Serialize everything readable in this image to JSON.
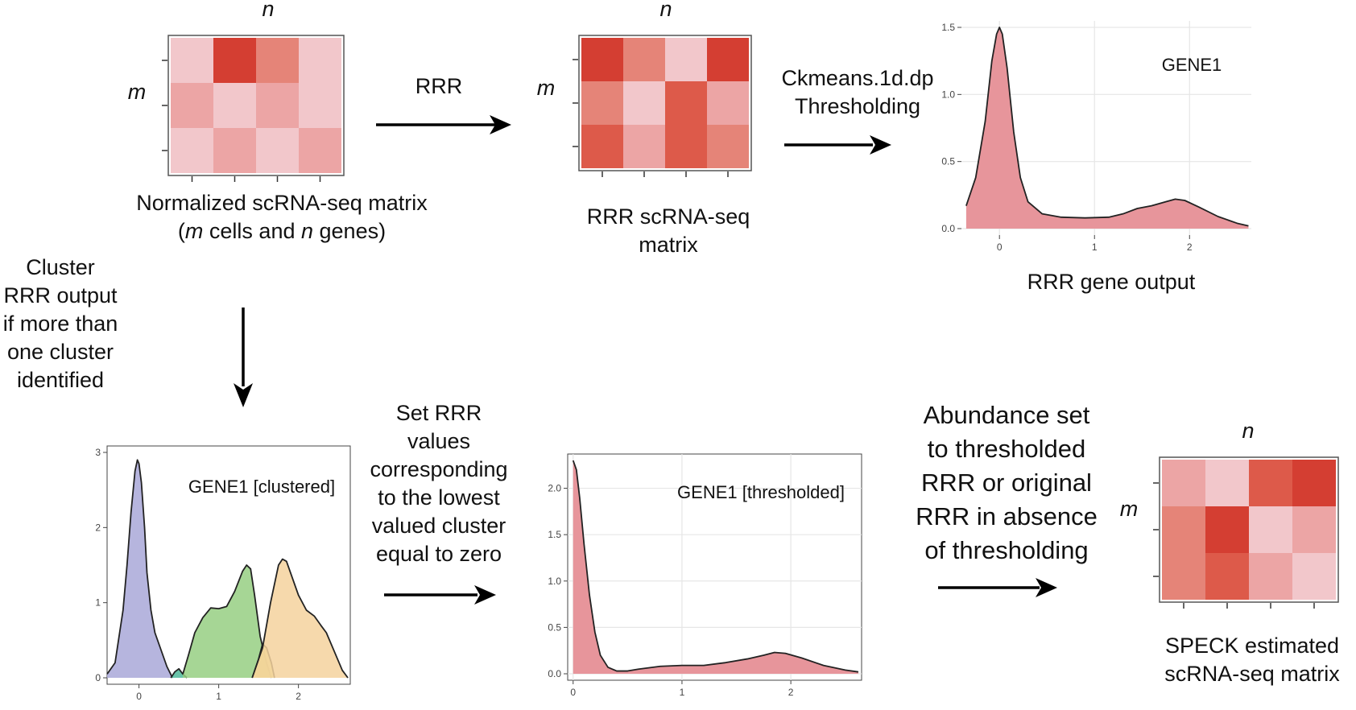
{
  "colors": {
    "cell_shades": [
      "#f2c7cb",
      "#eca5a5",
      "#e58478",
      "#dd5a4a",
      "#d43e32"
    ],
    "density_fill": "#e7959b",
    "cluster_fills": [
      "#a9a8d8",
      "#4fb89a",
      "#97cf83",
      "#e5e37e",
      "#f5d29e"
    ]
  },
  "matrices": {
    "normalized": {
      "col_label": "n",
      "row_label": "m",
      "caption_line1": "Normalized scRNA-seq matrix",
      "caption_line2_parts": [
        "(",
        "m",
        " cells and ",
        "n",
        " genes)"
      ],
      "cells": [
        [
          0,
          4,
          2,
          0
        ],
        [
          1,
          0,
          1,
          0
        ],
        [
          0,
          1,
          0,
          1
        ]
      ]
    },
    "rrr": {
      "col_label": "n",
      "row_label": "m",
      "caption": [
        "RRR scRNA-seq",
        "matrix"
      ],
      "cells": [
        [
          4,
          2,
          0,
          4
        ],
        [
          2,
          0,
          3,
          1
        ],
        [
          3,
          1,
          3,
          2
        ]
      ]
    },
    "speck": {
      "col_label": "n",
      "row_label": "m",
      "caption": [
        "SPECK estimated",
        "scRNA-seq matrix"
      ],
      "cells": [
        [
          1,
          0,
          3,
          4
        ],
        [
          2,
          4,
          0,
          1
        ],
        [
          2,
          3,
          1,
          0
        ]
      ]
    }
  },
  "arrows": {
    "rrr_label": "RRR",
    "ckmeans_label": [
      "Ckmeans.1d.dp",
      "Thresholding"
    ],
    "cluster_label": [
      "Cluster",
      "RRR output",
      "if more than",
      "one cluster",
      "identified"
    ],
    "set_label": [
      "Set RRR",
      "values",
      "corresponding",
      "to the lowest",
      "valued cluster",
      "equal to zero"
    ],
    "abundance_label": [
      "Abundance set",
      "to thresholded",
      "RRR or original",
      "RRR in absence",
      "of thresholding"
    ]
  },
  "charts": {
    "gene_output": {
      "title": "GENE1",
      "caption": "RRR gene output",
      "x_ticks": [
        "0",
        "1",
        "2"
      ],
      "y_ticks": [
        "0.0",
        "0.5",
        "1.0",
        "1.5"
      ]
    },
    "clustered": {
      "title": "GENE1 [clustered]",
      "x_ticks": [
        "0",
        "1",
        "2"
      ],
      "y_ticks": [
        "0",
        "1",
        "2",
        "3"
      ]
    },
    "thresholded": {
      "title": "GENE1 [thresholded]",
      "x_ticks": [
        "0",
        "1",
        "2"
      ],
      "y_ticks": [
        "0.0",
        "0.5",
        "1.0",
        "1.5",
        "2.0"
      ]
    }
  },
  "chart_data": [
    {
      "type": "area",
      "title": "GENE1",
      "xlabel": "RRR gene output",
      "xlim": [
        -0.4,
        2.65
      ],
      "ylim": [
        0,
        1.5
      ],
      "x": [
        -0.35,
        -0.25,
        -0.15,
        -0.08,
        -0.03,
        0.0,
        0.03,
        0.08,
        0.15,
        0.22,
        0.3,
        0.45,
        0.65,
        0.9,
        1.15,
        1.3,
        1.45,
        1.6,
        1.75,
        1.85,
        1.95,
        2.1,
        2.3,
        2.5,
        2.62
      ],
      "y": [
        0.17,
        0.38,
        0.8,
        1.25,
        1.45,
        1.5,
        1.45,
        1.2,
        0.72,
        0.38,
        0.2,
        0.11,
        0.085,
        0.08,
        0.085,
        0.11,
        0.15,
        0.17,
        0.2,
        0.22,
        0.21,
        0.16,
        0.09,
        0.04,
        0.02
      ]
    },
    {
      "type": "area",
      "title": "GENE1 [clustered]",
      "xlim": [
        -0.4,
        2.65
      ],
      "ylim": [
        0,
        3
      ],
      "series": [
        {
          "x": [
            -0.4,
            -0.3,
            -0.2,
            -0.15,
            -0.1,
            -0.05,
            -0.02,
            0.0,
            0.03,
            0.07,
            0.1,
            0.15,
            0.2,
            0.3,
            0.35,
            0.42
          ],
          "values": [
            0.05,
            0.2,
            0.9,
            1.5,
            2.2,
            2.75,
            2.9,
            2.85,
            2.6,
            2.0,
            1.4,
            0.9,
            0.6,
            0.3,
            0.15,
            0.0
          ]
        },
        {
          "x": [
            0.4,
            0.45,
            0.5,
            0.55,
            0.6
          ],
          "values": [
            0.0,
            0.08,
            0.12,
            0.05,
            0.0
          ]
        },
        {
          "x": [
            0.55,
            0.62,
            0.7,
            0.8,
            0.9,
            1.0,
            1.1,
            1.2,
            1.3,
            1.35,
            1.4,
            1.45,
            1.52,
            1.6,
            1.66
          ],
          "values": [
            0.05,
            0.3,
            0.6,
            0.8,
            0.93,
            0.92,
            0.95,
            1.15,
            1.42,
            1.5,
            1.45,
            1.1,
            0.55,
            0.2,
            0.0
          ]
        },
        {
          "x": [
            1.42,
            1.5,
            1.55,
            1.6,
            1.66,
            1.7
          ],
          "values": [
            0.0,
            0.25,
            0.45,
            0.4,
            0.2,
            0.0
          ]
        },
        {
          "x": [
            1.42,
            1.55,
            1.65,
            1.75,
            1.8,
            1.85,
            1.9,
            2.0,
            2.1,
            2.2,
            2.28,
            2.35,
            2.45,
            2.55,
            2.62
          ],
          "values": [
            0.0,
            0.4,
            1.0,
            1.5,
            1.58,
            1.55,
            1.4,
            1.1,
            0.9,
            0.82,
            0.7,
            0.6,
            0.35,
            0.1,
            0.0
          ]
        }
      ]
    },
    {
      "type": "area",
      "title": "GENE1 [thresholded]",
      "xlim": [
        -0.05,
        2.65
      ],
      "ylim": [
        0,
        2.3
      ],
      "x": [
        0.0,
        0.03,
        0.06,
        0.1,
        0.15,
        0.2,
        0.25,
        0.32,
        0.4,
        0.5,
        0.6,
        0.8,
        1.0,
        1.2,
        1.4,
        1.6,
        1.75,
        1.85,
        1.95,
        2.1,
        2.3,
        2.5,
        2.62
      ],
      "y": [
        2.3,
        2.2,
        1.9,
        1.4,
        0.85,
        0.45,
        0.2,
        0.07,
        0.03,
        0.03,
        0.05,
        0.08,
        0.09,
        0.09,
        0.12,
        0.16,
        0.2,
        0.23,
        0.22,
        0.17,
        0.09,
        0.04,
        0.02
      ]
    }
  ]
}
